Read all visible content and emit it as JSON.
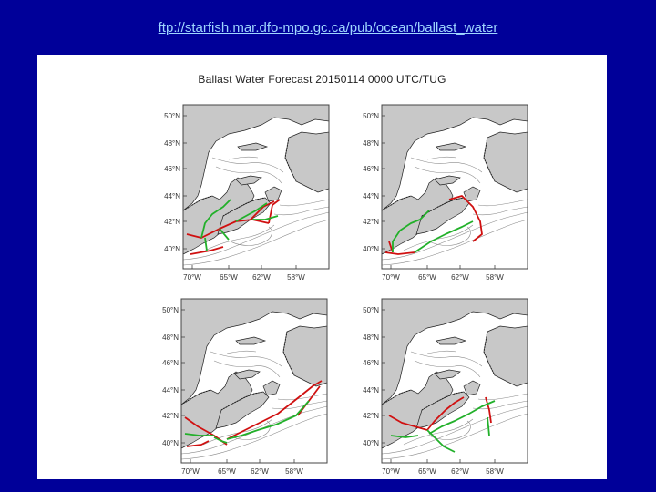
{
  "header": {
    "url_text": "ftp://starfish.mar.dfo-mpo.gc.ca/pub/ocean/ballast_water"
  },
  "figure": {
    "title": "Ballast Water Forecast 20150114 0000 UTC/TUG",
    "colors": {
      "land": "#c8c8c8",
      "water": "#ffffff",
      "frame": "#444444",
      "isobath": "#8a8a8a",
      "coast": "#222222",
      "route_red": "#d01010",
      "route_green": "#22b02a"
    },
    "panels": [
      {
        "name": "top-left",
        "lat_labels": [
          "50°N",
          "48°N",
          "46°N",
          "44°N",
          "42°N",
          "40°N"
        ],
        "lon_labels": [
          "70°W",
          "65°W",
          "62°W",
          "58°W"
        ]
      },
      {
        "name": "top-right",
        "lat_labels": [
          "50°N",
          "48°N",
          "46°N",
          "44°N",
          "42°N",
          "40°N"
        ],
        "lon_labels": [
          "70°W",
          "65°W",
          "62°W",
          "58°W"
        ]
      },
      {
        "name": "bottom-left",
        "lat_labels": [
          "50°N",
          "48°N",
          "46°N",
          "44°N",
          "42°N",
          "40°N"
        ],
        "lon_labels": [
          "70°W",
          "65°W",
          "62°W",
          "58°W"
        ]
      },
      {
        "name": "bottom-right",
        "lat_labels": [
          "50°N",
          "48°N",
          "46°N",
          "44°N",
          "42°N",
          "40°N"
        ],
        "lon_labels": [
          "70°W",
          "65°W",
          "62°W",
          "58°W"
        ]
      }
    ]
  }
}
